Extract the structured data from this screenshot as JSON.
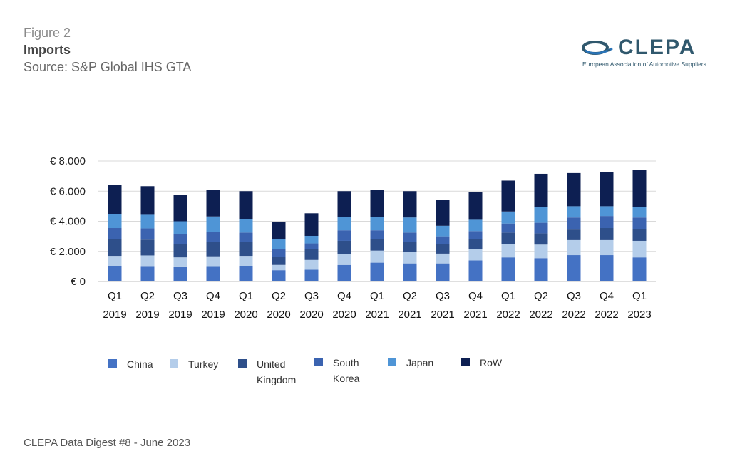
{
  "header": {
    "figure_label": "Figure 2",
    "title": "Imports",
    "source": "Source: S&P Global IHS GTA"
  },
  "logo": {
    "name": "CLEPA",
    "tagline": "European Association of Automotive Suppliers",
    "icon": "clepa-swoosh-logo-icon"
  },
  "footer": {
    "text": "CLEPA Data Digest #8 - June 2023"
  },
  "colors": {
    "China": "#4472c4",
    "Turkey": "#b4cdea",
    "United Kingdom": "#2e4f8a",
    "South Korea": "#3b63b0",
    "Japan": "#4f95d6",
    "RoW": "#0d1f52"
  },
  "chart_data": {
    "type": "bar",
    "stacked": true,
    "categories": [
      [
        "Q1",
        "2019"
      ],
      [
        "Q2",
        "2019"
      ],
      [
        "Q3",
        "2019"
      ],
      [
        "Q4",
        "2019"
      ],
      [
        "Q1",
        "2020"
      ],
      [
        "Q2",
        "2020"
      ],
      [
        "Q3",
        "2020"
      ],
      [
        "Q4",
        "2020"
      ],
      [
        "Q1",
        "2021"
      ],
      [
        "Q2",
        "2021"
      ],
      [
        "Q3",
        "2021"
      ],
      [
        "Q4",
        "2021"
      ],
      [
        "Q1",
        "2022"
      ],
      [
        "Q2",
        "2022"
      ],
      [
        "Q3",
        "2022"
      ],
      [
        "Q4",
        "2022"
      ],
      [
        "Q1",
        "2023"
      ]
    ],
    "series": [
      {
        "name": "China",
        "values": [
          1000,
          980,
          950,
          970,
          1000,
          750,
          780,
          1100,
          1250,
          1200,
          1200,
          1400,
          1600,
          1550,
          1750,
          1750,
          1600
        ]
      },
      {
        "name": "Turkey",
        "values": [
          700,
          750,
          650,
          700,
          700,
          350,
          650,
          700,
          800,
          750,
          650,
          750,
          900,
          900,
          1000,
          1000,
          1100
        ]
      },
      {
        "name": "United Kingdom",
        "values": [
          1100,
          1050,
          900,
          950,
          950,
          550,
          700,
          900,
          750,
          700,
          650,
          650,
          750,
          750,
          700,
          800,
          800
        ]
      },
      {
        "name": "South Korea",
        "values": [
          750,
          750,
          650,
          650,
          600,
          500,
          400,
          700,
          600,
          600,
          500,
          550,
          600,
          700,
          800,
          800,
          750
        ]
      },
      {
        "name": "Japan",
        "values": [
          900,
          900,
          850,
          1050,
          900,
          650,
          500,
          900,
          900,
          1000,
          700,
          750,
          800,
          1050,
          750,
          650,
          700
        ]
      },
      {
        "name": "RoW",
        "values": [
          1950,
          1900,
          1750,
          1750,
          1850,
          1150,
          1500,
          1700,
          1800,
          1750,
          1700,
          1850,
          2050,
          2200,
          2200,
          2250,
          2450
        ]
      }
    ],
    "yticks": [
      "€ 0",
      "€ 2.000",
      "€ 4.000",
      "€ 6.000",
      "€ 8.000"
    ],
    "ylim": [
      0,
      8000
    ],
    "grid": true,
    "legend": {
      "placement": "bottom",
      "items": [
        {
          "series": "China",
          "label": "China"
        },
        {
          "series": "Turkey",
          "label": "Turkey"
        },
        {
          "series": "United Kingdom",
          "label": "United Kingdom"
        },
        {
          "series": "South Korea",
          "label": "South Korea"
        },
        {
          "series": "Japan",
          "label": "Japan"
        },
        {
          "series": "RoW",
          "label": "RoW"
        }
      ]
    }
  }
}
